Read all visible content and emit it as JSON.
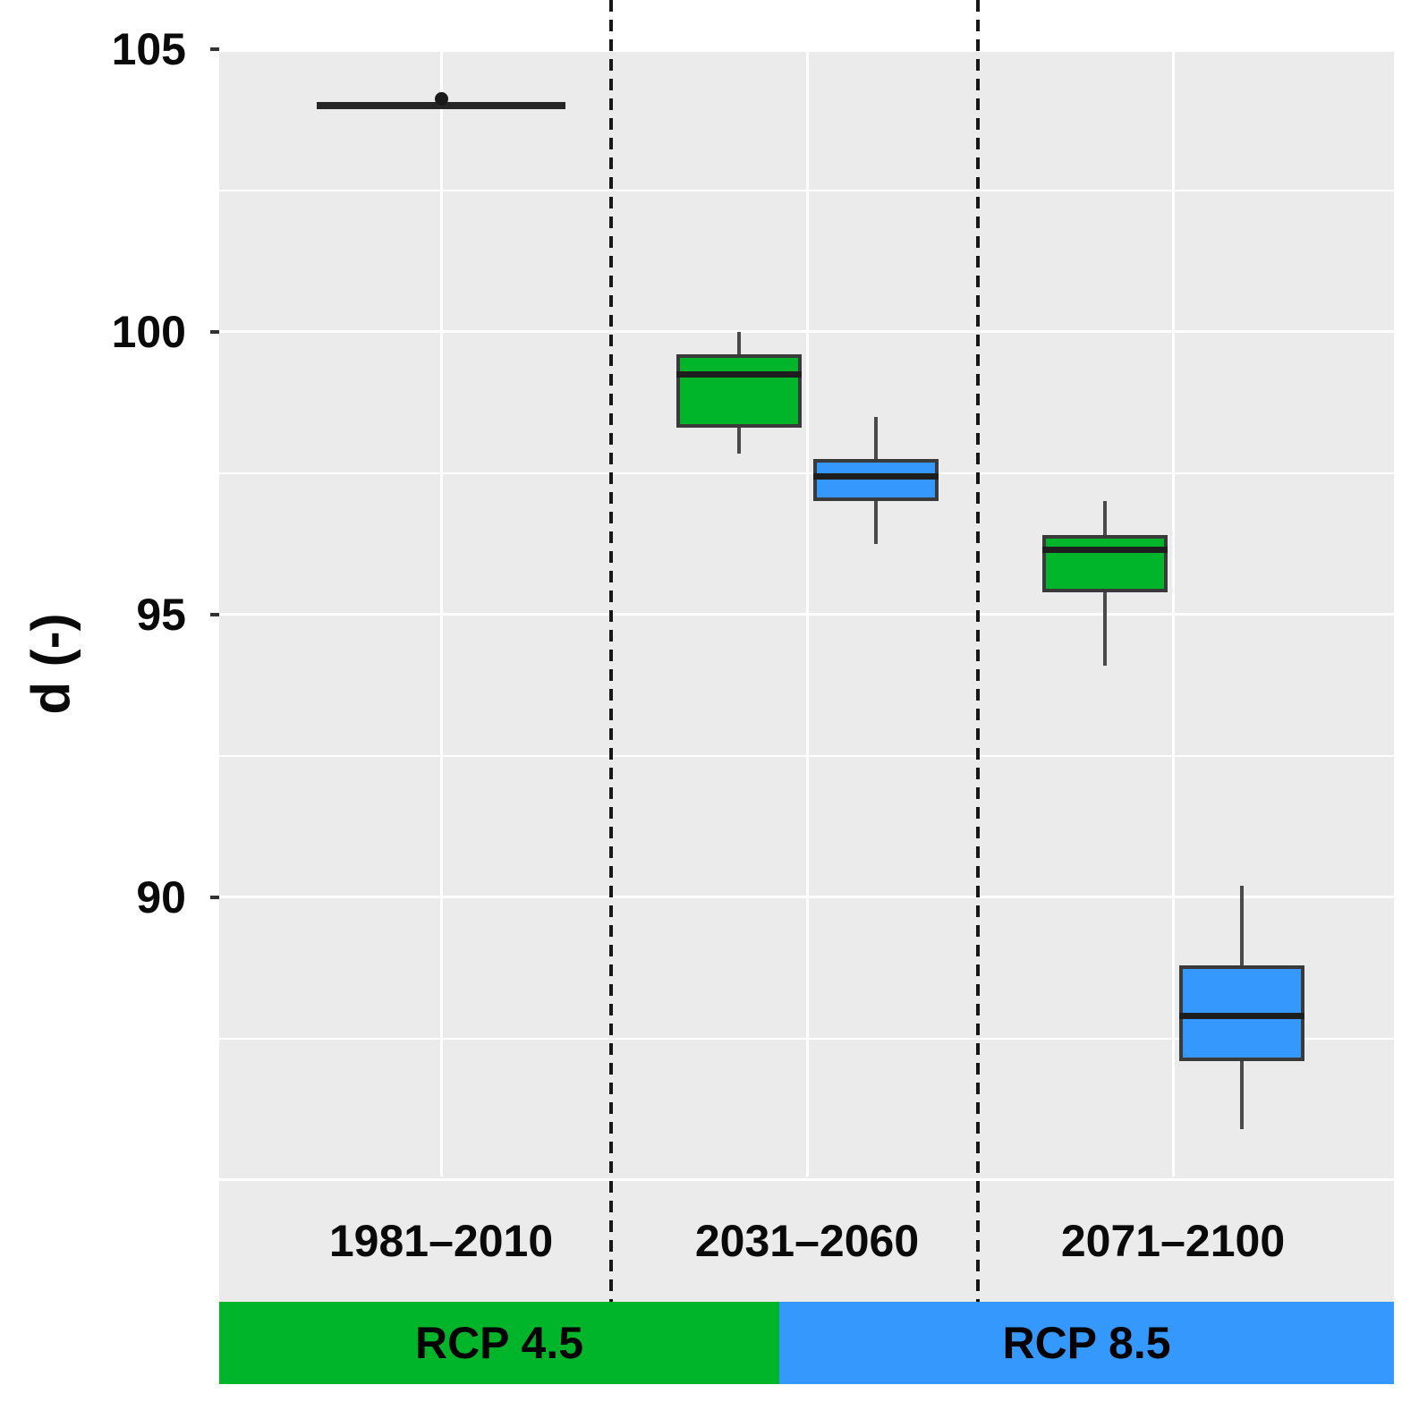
{
  "chart_data": {
    "type": "boxplot",
    "title": "",
    "xlabel": "",
    "ylabel": "d (-)",
    "ylim": [
      82.8,
      105
    ],
    "yticks": [
      105,
      100,
      95,
      90
    ],
    "grid": {
      "major": [
        105,
        100,
        95,
        90,
        85
      ],
      "minor": [
        102.5,
        97.5,
        92.5,
        87.5
      ],
      "grid_color": "#ffffff",
      "panel_background": "#ebebeb"
    },
    "legend_position": "bottom-bar",
    "panels": [
      {
        "period": "1981–2010",
        "scenario_band": "RCP 4.5",
        "boxes": [
          {
            "name": "historical",
            "fill": "#262626",
            "min": 104.0,
            "q1": 104.0,
            "median": 104.0,
            "q3": 104.0,
            "max": 104.0,
            "outliers": [
              104.12
            ]
          }
        ]
      },
      {
        "period": "2031–2060",
        "scenario_band": "RCP 4.5 | RCP 8.5",
        "boxes": [
          {
            "name": "RCP 4.5",
            "fill": "#00b52a",
            "min": 97.85,
            "q1": 98.3,
            "median": 99.25,
            "q3": 99.6,
            "max": 100.0,
            "outliers": []
          },
          {
            "name": "RCP 8.5",
            "fill": "#3598fd",
            "min": 96.25,
            "q1": 97.0,
            "median": 97.45,
            "q3": 97.75,
            "max": 98.5,
            "outliers": []
          }
        ]
      },
      {
        "period": "2071–2100",
        "scenario_band": "RCP 8.5",
        "boxes": [
          {
            "name": "RCP 4.5",
            "fill": "#00b52a",
            "min": 94.1,
            "q1": 95.4,
            "median": 96.15,
            "q3": 96.4,
            "max": 97.0,
            "outliers": []
          },
          {
            "name": "RCP 8.5",
            "fill": "#3598fd",
            "min": 85.9,
            "q1": 87.1,
            "median": 87.9,
            "q3": 88.8,
            "max": 90.2,
            "outliers": []
          }
        ]
      }
    ],
    "scenario_bar": {
      "segments": [
        {
          "label": "RCP 4.5",
          "color": "#00b52a"
        },
        {
          "label": "RCP 8.5",
          "color": "#3598fd"
        }
      ]
    }
  },
  "colors": {
    "rcp45_green": "#00b52a",
    "rcp85_blue": "#3598fd",
    "historical_black": "#262626",
    "panel_background": "#ebebeb",
    "gridline_white": "#ffffff",
    "box_stroke": "#3a3a3a",
    "median_line": "#1e1e1e",
    "separator_black": "#161616",
    "text_black": "#0a0a0a"
  }
}
